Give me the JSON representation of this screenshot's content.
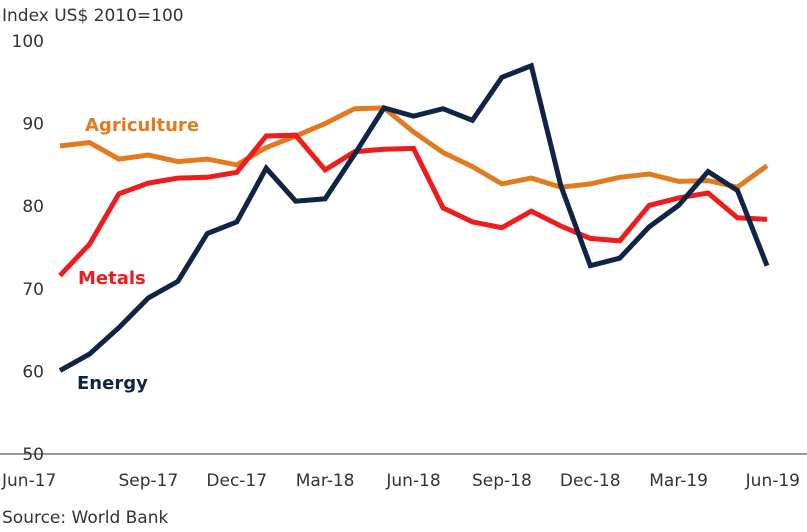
{
  "chart_data": {
    "type": "line",
    "ylabel": "Index US$ 2010=100",
    "source": "Source: World Bank",
    "ylim": [
      50,
      100
    ],
    "yticks": [
      "50",
      "60",
      "70",
      "80",
      "90",
      "100"
    ],
    "xtick_labels": [
      "Jun-17",
      "Sep-17",
      "Dec-17",
      "Mar-18",
      "Jun-18",
      "Sep-18",
      "Dec-18",
      "Mar-19",
      "Jun-19"
    ],
    "x": [
      "Jun-17",
      "Jul-17",
      "Aug-17",
      "Sep-17",
      "Oct-17",
      "Nov-17",
      "Dec-17",
      "Jan-18",
      "Feb-18",
      "Mar-18",
      "Apr-18",
      "May-18",
      "Jun-18",
      "Jul-18",
      "Aug-18",
      "Sep-18",
      "Oct-18",
      "Nov-18",
      "Dec-18",
      "Jan-19",
      "Feb-19",
      "Mar-19",
      "Apr-19",
      "May-19",
      "Jun-19"
    ],
    "grid": false,
    "series": [
      {
        "name": "Agriculture",
        "color": "#E07B1F",
        "values": [
          87.3,
          87.7,
          85.7,
          86.2,
          85.4,
          85.7,
          85.0,
          87.1,
          88.5,
          90.0,
          91.8,
          91.9,
          89.0,
          86.5,
          84.8,
          82.7,
          83.4,
          82.3,
          82.7,
          83.5,
          83.9,
          83.0,
          83.1,
          82.3,
          84.9
        ]
      },
      {
        "name": "Metals",
        "color": "#EE1C1C",
        "values": [
          71.6,
          75.4,
          81.5,
          82.8,
          83.4,
          83.5,
          84.1,
          88.5,
          88.6,
          84.4,
          86.6,
          86.9,
          87.0,
          79.8,
          78.1,
          77.4,
          79.4,
          77.6,
          76.1,
          75.8,
          80.1,
          81.0,
          81.6,
          78.6,
          78.4
        ]
      },
      {
        "name": "Energy",
        "color": "#0F2446",
        "values": [
          60.1,
          62.1,
          65.3,
          68.9,
          70.9,
          76.7,
          78.1,
          84.6,
          80.6,
          80.9,
          86.3,
          91.9,
          90.9,
          91.8,
          90.4,
          95.6,
          97.0,
          82.5,
          72.8,
          73.7,
          77.5,
          80.1,
          84.2,
          81.9,
          72.8
        ]
      }
    ]
  }
}
